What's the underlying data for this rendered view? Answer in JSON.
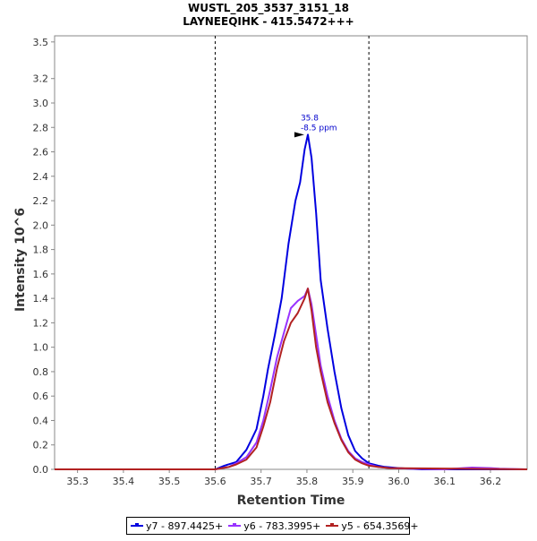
{
  "chart_data": {
    "type": "line",
    "title": "WUSTL_205_3537_3151_18",
    "subtitle": "LAYNEEQIHK - 415.5472+++",
    "xlabel": "Retention Time",
    "ylabel": "Intensity 10^6",
    "xlim": [
      35.25,
      36.28
    ],
    "ylim": [
      0,
      3.55
    ],
    "x_ticks": [
      "35.3",
      "35.4",
      "35.5",
      "35.6",
      "35.7",
      "35.8",
      "35.9",
      "36.0",
      "36.1",
      "36.2"
    ],
    "y_ticks": [
      "0.0",
      "0.2",
      "0.4",
      "0.6",
      "0.8",
      "1.0",
      "1.2",
      "1.4",
      "1.6",
      "1.8",
      "2.0",
      "2.2",
      "2.4",
      "2.6",
      "2.8",
      "3.0",
      "3.2",
      "3.5"
    ],
    "boundaries": [
      35.6,
      35.935
    ],
    "grid": false,
    "legend_position": "bottom",
    "annotation": {
      "x": 35.8,
      "y": 2.74,
      "line1": "35.8",
      "line2": "-8.5 ppm",
      "color": "#0000cc"
    },
    "series": [
      {
        "name": "y7 - 897.4425+",
        "color": "#0000e0",
        "x": [
          35.25,
          35.6,
          35.62,
          35.646,
          35.668,
          35.68,
          35.69,
          35.705,
          35.715,
          35.73,
          35.745,
          35.76,
          35.775,
          35.785,
          35.795,
          35.802,
          35.81,
          35.82,
          35.83,
          35.845,
          35.86,
          35.875,
          35.89,
          35.905,
          35.92,
          35.935,
          35.955,
          35.97,
          36.0,
          36.05,
          36.1,
          36.28
        ],
        "y": [
          0.0,
          0.0,
          0.03,
          0.06,
          0.16,
          0.25,
          0.33,
          0.6,
          0.82,
          1.1,
          1.4,
          1.85,
          2.2,
          2.35,
          2.62,
          2.74,
          2.55,
          2.1,
          1.55,
          1.15,
          0.8,
          0.5,
          0.28,
          0.15,
          0.09,
          0.05,
          0.03,
          0.02,
          0.01,
          0.0,
          0.0,
          0.0
        ]
      },
      {
        "name": "y6 - 783.3995+",
        "color": "#9933ff",
        "x": [
          35.25,
          35.6,
          35.63,
          35.646,
          35.668,
          35.69,
          35.705,
          35.72,
          35.735,
          35.75,
          35.765,
          35.78,
          35.795,
          35.802,
          35.81,
          35.82,
          35.83,
          35.845,
          35.86,
          35.875,
          35.89,
          35.905,
          35.92,
          35.935,
          35.955,
          35.98,
          36.1,
          36.14,
          36.16,
          36.2,
          36.22,
          36.28
        ],
        "y": [
          0.0,
          0.0,
          0.02,
          0.05,
          0.1,
          0.22,
          0.4,
          0.65,
          0.92,
          1.12,
          1.32,
          1.38,
          1.42,
          1.48,
          1.35,
          1.1,
          0.85,
          0.6,
          0.4,
          0.25,
          0.15,
          0.09,
          0.06,
          0.04,
          0.02,
          0.01,
          0.0,
          0.01,
          0.015,
          0.01,
          0.005,
          0.0
        ]
      },
      {
        "name": "y5 - 654.3569+",
        "color": "#b22222",
        "x": [
          35.25,
          35.6,
          35.63,
          35.646,
          35.668,
          35.69,
          35.705,
          35.72,
          35.735,
          35.75,
          35.765,
          35.78,
          35.795,
          35.802,
          35.81,
          35.82,
          35.83,
          35.845,
          35.86,
          35.875,
          35.89,
          35.905,
          35.92,
          35.935,
          35.955,
          35.98,
          36.28
        ],
        "y": [
          0.0,
          0.0,
          0.02,
          0.04,
          0.08,
          0.18,
          0.35,
          0.55,
          0.83,
          1.05,
          1.2,
          1.28,
          1.4,
          1.48,
          1.3,
          1.0,
          0.8,
          0.55,
          0.38,
          0.24,
          0.14,
          0.08,
          0.05,
          0.03,
          0.02,
          0.01,
          0.0
        ]
      }
    ]
  }
}
